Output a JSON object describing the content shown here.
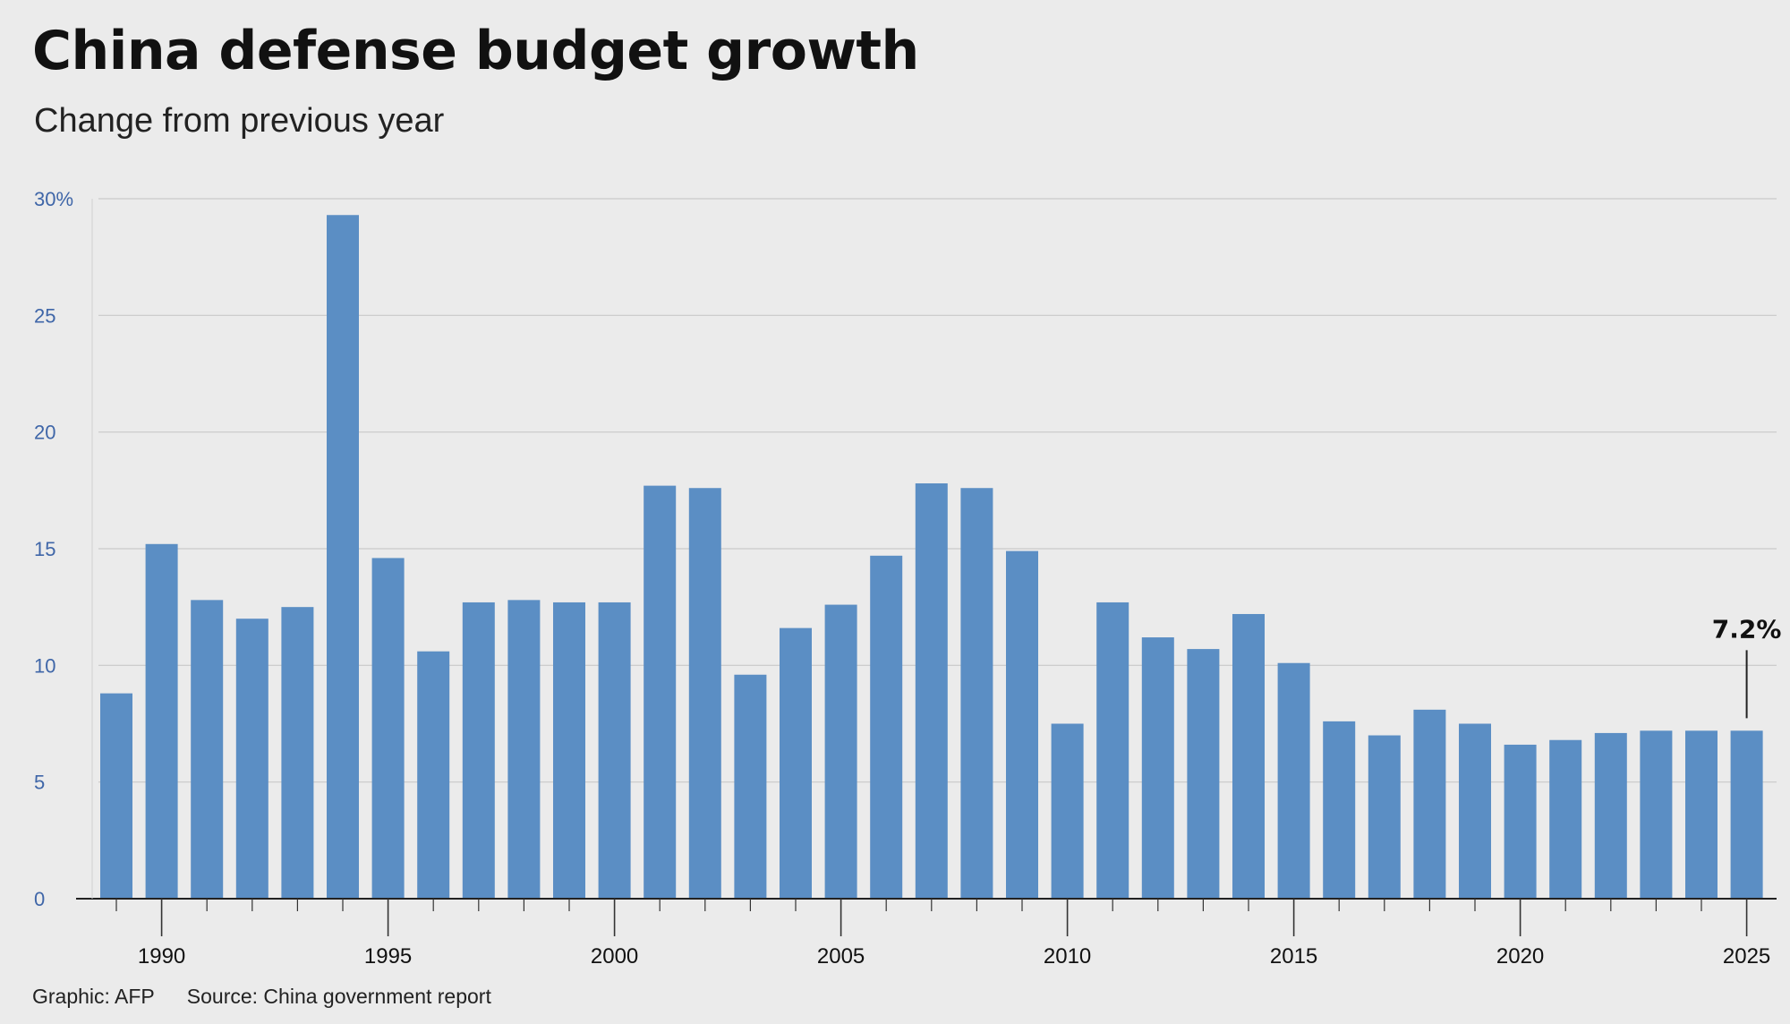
{
  "chart_data": {
    "type": "bar",
    "title": "China defense budget growth",
    "subtitle": "Change from previous year",
    "xlabel": "",
    "ylabel": "",
    "x": [
      1989,
      1990,
      1991,
      1992,
      1993,
      1994,
      1995,
      1996,
      1997,
      1998,
      1999,
      2000,
      2001,
      2002,
      2003,
      2004,
      2005,
      2006,
      2007,
      2008,
      2009,
      2010,
      2011,
      2012,
      2013,
      2014,
      2015,
      2016,
      2017,
      2018,
      2019,
      2020,
      2021,
      2022,
      2023,
      2024,
      2025
    ],
    "values": [
      8.8,
      15.2,
      12.8,
      12.0,
      12.5,
      29.3,
      14.6,
      10.6,
      12.7,
      12.8,
      12.7,
      12.7,
      17.7,
      17.6,
      9.6,
      11.6,
      12.6,
      14.7,
      17.8,
      17.6,
      14.9,
      7.5,
      12.7,
      11.2,
      10.7,
      12.2,
      10.1,
      7.6,
      7.0,
      8.1,
      7.5,
      6.6,
      6.8,
      7.1,
      7.2,
      7.2,
      7.2
    ],
    "x_ticks": [
      "1990",
      "1995",
      "2000",
      "2005",
      "2010",
      "2015",
      "2020",
      "2025"
    ],
    "y_ticks": [
      "30%",
      "25",
      "20",
      "15",
      "10",
      "5",
      "0"
    ],
    "ylim": [
      0,
      30
    ],
    "grid": true,
    "bar_color": "#5b8ec4",
    "annotation": {
      "label": "7.2%",
      "x": 2025,
      "value": 7.2
    }
  },
  "footer": {
    "graphic": "Graphic: AFP",
    "source": "Source: China government report"
  }
}
